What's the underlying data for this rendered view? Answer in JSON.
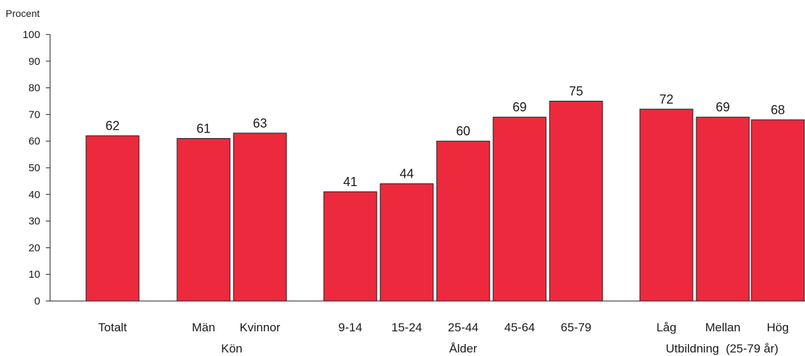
{
  "chart_data": {
    "type": "bar",
    "ylabel": "Procent",
    "ylim": [
      0,
      100
    ],
    "yticks": [
      0,
      10,
      20,
      30,
      40,
      50,
      60,
      70,
      80,
      90,
      100
    ],
    "bar_color": "#ed2a3d",
    "categories": [
      "Totalt",
      "Män",
      "Kvinnor",
      "9-14",
      "15-24",
      "25-44",
      "45-64",
      "65-79",
      "Låg",
      "Mellan",
      "Hög"
    ],
    "values": [
      62,
      61,
      63,
      41,
      44,
      60,
      69,
      75,
      72,
      69,
      68
    ],
    "groups": [
      {
        "label": "",
        "categories": [
          "Totalt"
        ]
      },
      {
        "label": "Kön",
        "categories": [
          "Män",
          "Kvinnor"
        ]
      },
      {
        "label": "Ålder",
        "categories": [
          "9-14",
          "15-24",
          "25-44",
          "45-64",
          "65-79"
        ]
      },
      {
        "label": "Utbildning  (25-79 år)",
        "categories": [
          "Låg",
          "Mellan",
          "Hög"
        ]
      }
    ],
    "grid": false,
    "legend": "none"
  }
}
